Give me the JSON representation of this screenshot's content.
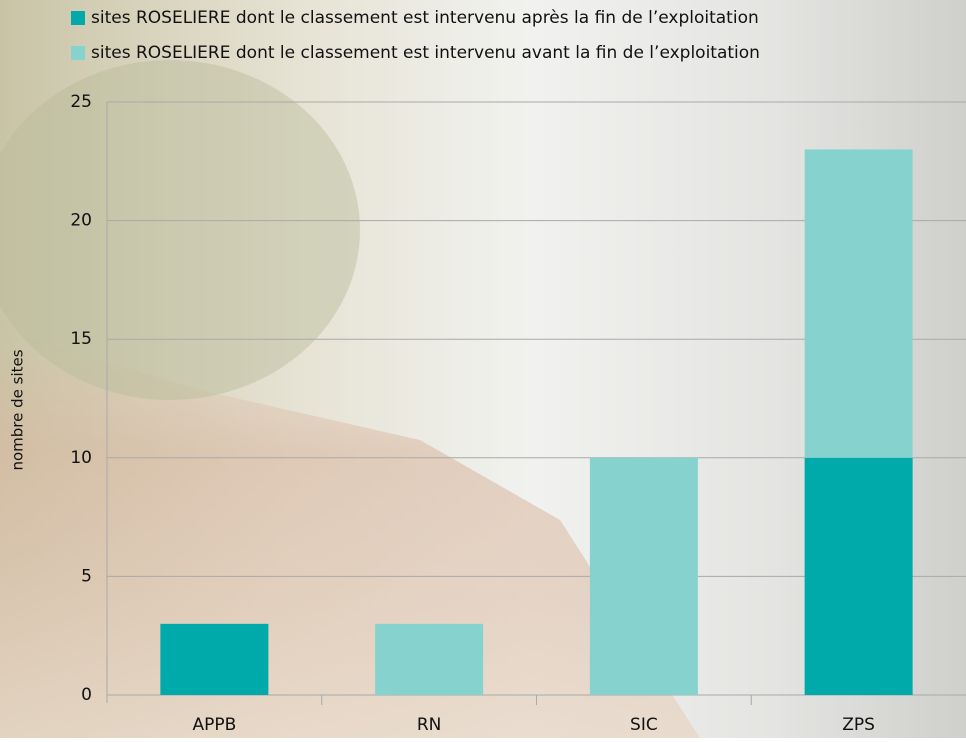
{
  "chart_data": {
    "type": "stacked-bar",
    "categories": [
      "APPB",
      "RN",
      "SIC",
      "ZPS"
    ],
    "series": [
      {
        "name": "sites ROSELIERE dont le classement est intervenu après la fin de l’exploitation",
        "color": "#00a9aa",
        "values": [
          3,
          0,
          0,
          10
        ]
      },
      {
        "name": "sites ROSELIERE dont le classement est intervenu avant la fin de l’exploitation",
        "color": "#86d2cf",
        "values": [
          0,
          3,
          10,
          13
        ]
      }
    ],
    "y_label": "nombre de sites",
    "ylim": [
      0,
      25
    ],
    "yticks": [
      0,
      5,
      10,
      15,
      20,
      25
    ],
    "grid": true
  }
}
